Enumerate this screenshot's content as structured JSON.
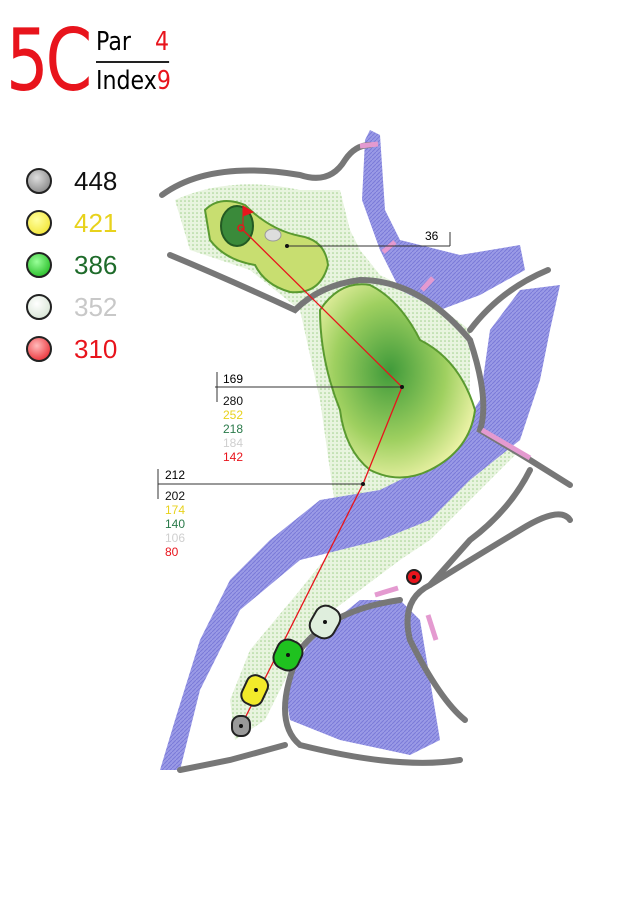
{
  "hole": {
    "number": "5C",
    "par_label": "Par",
    "par": "4",
    "index_label": "Index",
    "index": "9"
  },
  "tees": [
    {
      "yards": "448",
      "color": "#8a8a8a",
      "text_color": "#111111"
    },
    {
      "yards": "421",
      "color": "#f2ea2a",
      "text_color": "#e8d21c"
    },
    {
      "yards": "386",
      "color": "#1fc21f",
      "text_color": "#1e6b2a"
    },
    {
      "yards": "352",
      "color": "#dfeedd",
      "text_color": "#c8c8c8"
    },
    {
      "yards": "310",
      "color": "#e8141c",
      "text_color": "#e8141c"
    }
  ],
  "markers": {
    "green_hazard": {
      "distance": "36"
    },
    "layup1": {
      "to_green": "169",
      "from_tee": [
        "280",
        "252",
        "218",
        "184",
        "142"
      ]
    },
    "layup2": {
      "to_green": "212",
      "from_tee": [
        "202",
        "174",
        "140",
        "106",
        "80"
      ]
    }
  },
  "colors": {
    "water": "#8c8ce0",
    "fairway": "#b8dc70",
    "rough": "#cfe8bf",
    "road": "#7a7a7a",
    "line": "#e8141c"
  }
}
